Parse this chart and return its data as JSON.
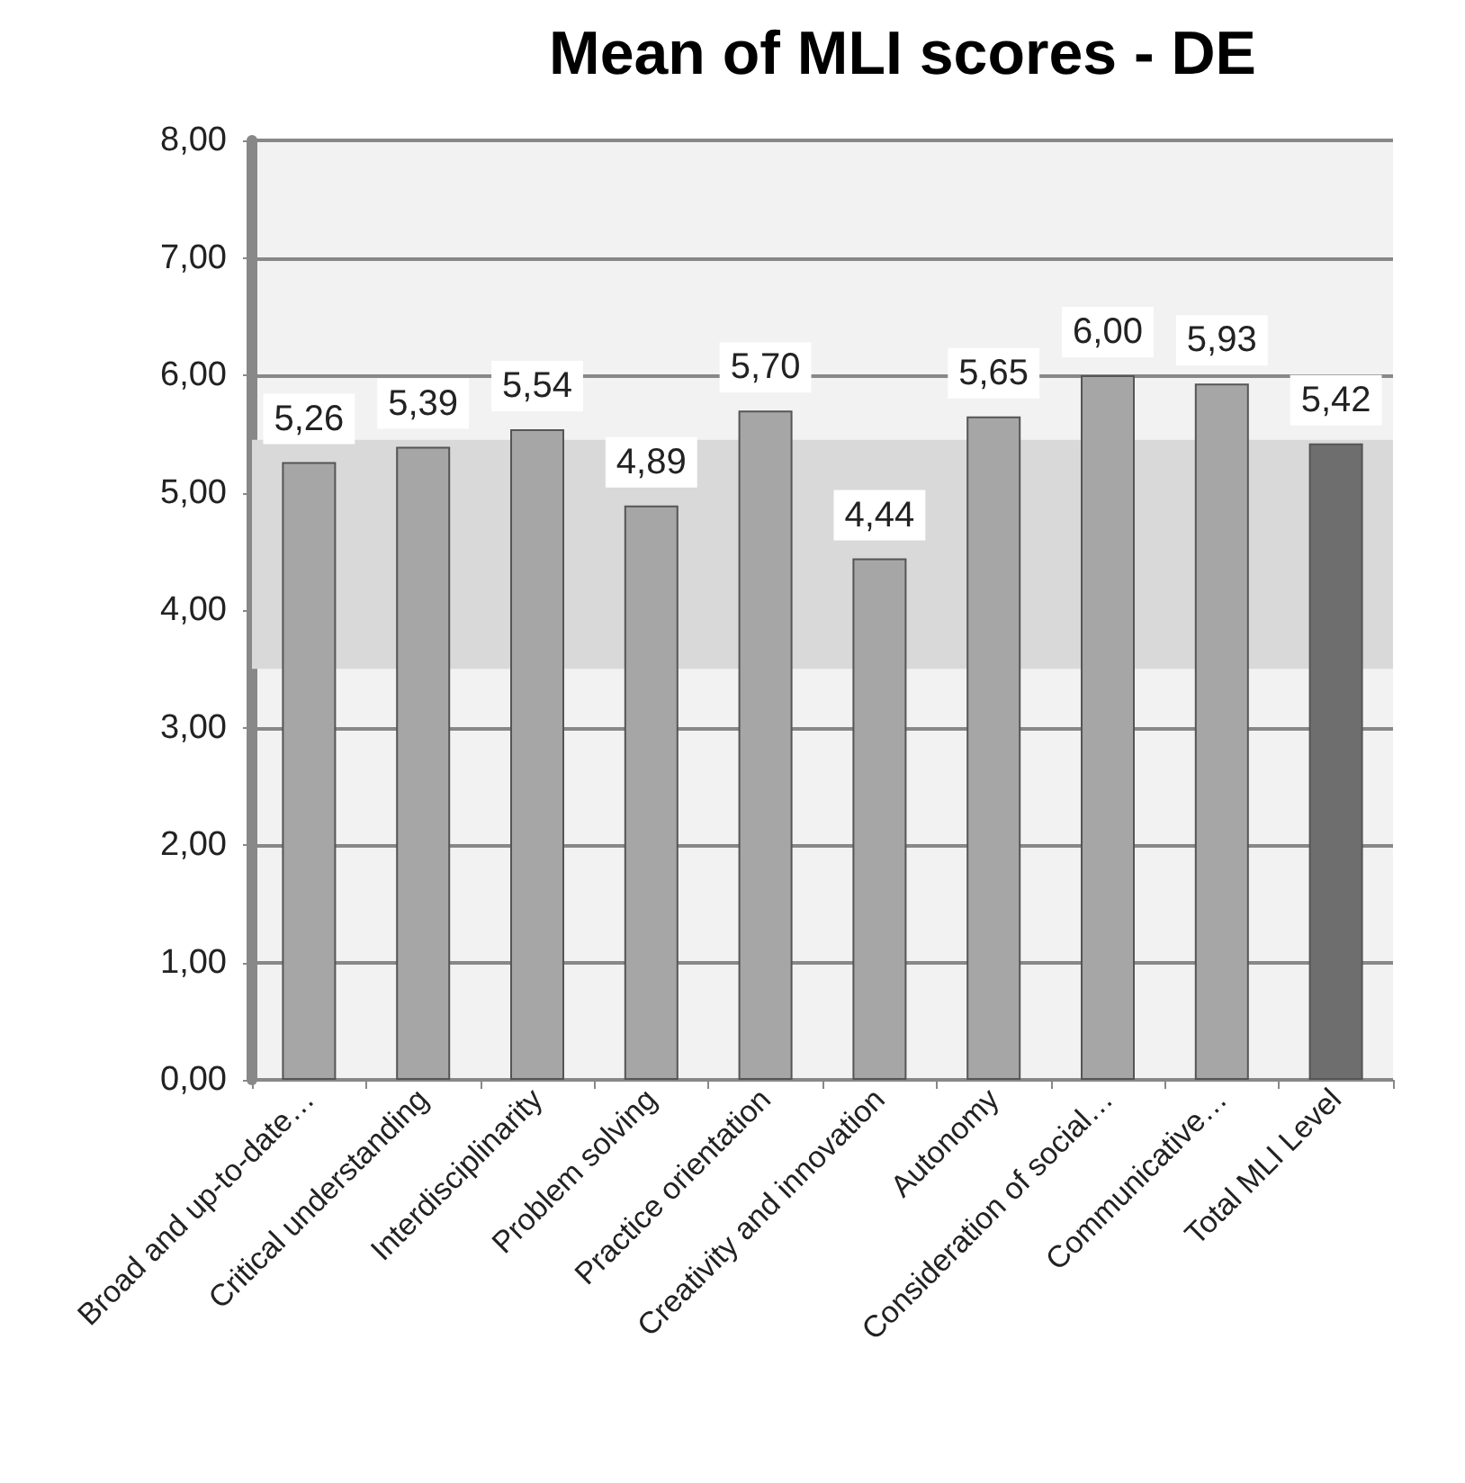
{
  "chart_data": {
    "type": "bar",
    "title": "Mean of MLI scores - DE",
    "categories": [
      "Broad and up-to-date…",
      "Critical understanding",
      "Interdisciplinarity",
      "Problem solving",
      "Practice orientation",
      "Creativity and innovation",
      "Autonomy",
      "Consideration of social…",
      "Communicative…",
      "Total MLI Level"
    ],
    "values": [
      5.26,
      5.39,
      5.54,
      4.89,
      5.7,
      4.44,
      5.65,
      6.0,
      5.93,
      5.42
    ],
    "value_labels": [
      "5,26",
      "5,39",
      "5,54",
      "4,89",
      "5,70",
      "4,44",
      "5,65",
      "6,00",
      "5,93",
      "5,42"
    ],
    "colors": [
      "#a6a6a6",
      "#a6a6a6",
      "#a6a6a6",
      "#a6a6a6",
      "#a6a6a6",
      "#a6a6a6",
      "#a6a6a6",
      "#a6a6a6",
      "#a6a6a6",
      "#6e6e6e"
    ],
    "ylim": [
      0,
      8
    ],
    "yticks": [
      {
        "value": 0,
        "label": "0,00"
      },
      {
        "value": 1,
        "label": "1,00"
      },
      {
        "value": 2,
        "label": "2,00"
      },
      {
        "value": 3,
        "label": "3,00"
      },
      {
        "value": 4,
        "label": "4,00"
      },
      {
        "value": 5,
        "label": "5,00"
      },
      {
        "value": 6,
        "label": "6,00"
      },
      {
        "value": 7,
        "label": "7,00"
      },
      {
        "value": 8,
        "label": "8,00"
      }
    ],
    "bands": [
      {
        "axis": "y",
        "from": 3.5,
        "to": 5.45,
        "color": "#d9d9d9"
      }
    ],
    "grid": "y"
  }
}
